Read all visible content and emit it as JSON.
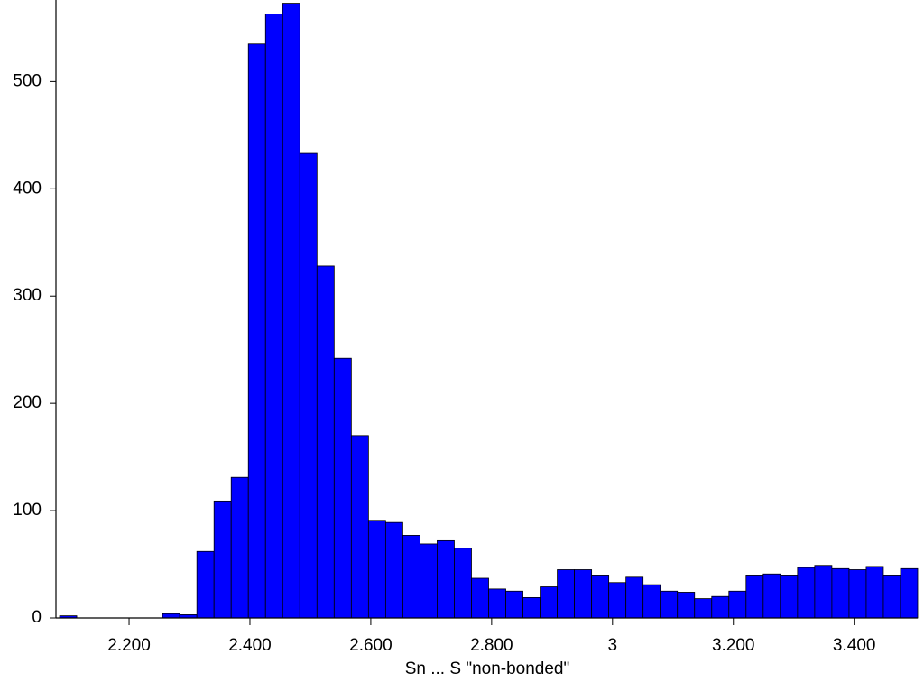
{
  "chart_data": {
    "type": "histogram",
    "x_label": "Sn ... S \"non-bonded\"",
    "bins": [
      2.085,
      2.1134,
      2.1418,
      2.1702,
      2.1986,
      2.227,
      2.2554,
      2.2838,
      2.3122,
      2.3406,
      2.369,
      2.3974,
      2.4258,
      2.4542,
      2.4826,
      2.511,
      2.5394,
      2.5678,
      2.5962,
      2.6246,
      2.653,
      2.6814,
      2.7098,
      2.7382,
      2.7666,
      2.795,
      2.8234,
      2.8518,
      2.8802,
      2.9086,
      2.937,
      2.9654,
      2.9938,
      3.0222,
      3.0506,
      3.079,
      3.1074,
      3.1358,
      3.1642,
      3.1926,
      3.221,
      3.2494,
      3.2778,
      3.3062,
      3.3346,
      3.363,
      3.3914,
      3.4198,
      3.4482,
      3.4766,
      3.505
    ],
    "values": [
      2,
      0,
      0,
      0,
      0,
      0,
      4,
      3,
      62,
      109,
      131,
      535,
      563,
      573,
      433,
      328,
      242,
      170,
      91,
      89,
      77,
      69,
      72,
      65,
      37,
      27,
      25,
      19,
      29,
      45,
      45,
      40,
      33,
      38,
      31,
      25,
      24,
      18,
      20,
      25,
      40,
      41,
      40,
      47,
      49,
      46,
      45,
      48,
      40,
      46
    ],
    "color": "#0000ff",
    "xlim": [
      2.079,
      3.505
    ],
    "ylim": [
      0,
      576
    ],
    "xticks": [
      {
        "value": 2.2,
        "label": "2.200"
      },
      {
        "value": 2.4,
        "label": "2.400"
      },
      {
        "value": 2.6,
        "label": "2.600"
      },
      {
        "value": 2.8,
        "label": "2.800"
      },
      3,
      {
        "value": 3.2,
        "label": "3.200"
      },
      {
        "value": 3.4,
        "label": "3.400"
      }
    ],
    "yticks": [
      0,
      100,
      200,
      300,
      400,
      500
    ]
  }
}
